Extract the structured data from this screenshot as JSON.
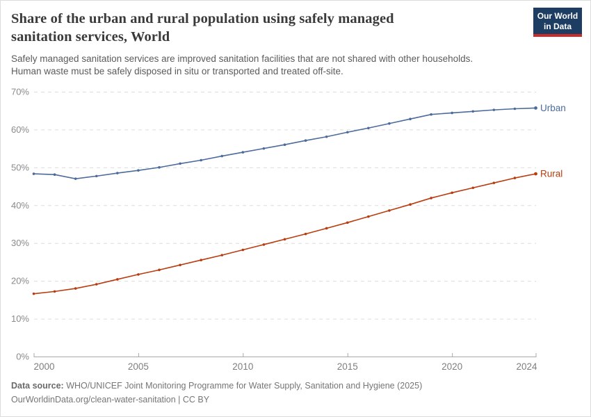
{
  "header": {
    "title_lines": [
      "Share of the urban and rural population using safely managed",
      "sanitation services, World"
    ],
    "subtitle_lines": [
      "Safely managed sanitation services are improved sanitation facilities that are not shared with other households.",
      "Human waste must be safely disposed in situ or transported and treated off-site."
    ]
  },
  "logo": {
    "line1": "Our World",
    "line2": "in Data",
    "bg_color": "#1D3D63",
    "accent_color": "#CB2B29"
  },
  "chart_data": {
    "type": "line",
    "title": "Share of the urban and rural population using safely managed sanitation services, World",
    "x": [
      2000,
      2001,
      2002,
      2003,
      2004,
      2005,
      2006,
      2007,
      2008,
      2009,
      2010,
      2011,
      2012,
      2013,
      2014,
      2015,
      2016,
      2017,
      2018,
      2019,
      2020,
      2021,
      2022,
      2023,
      2024
    ],
    "series": [
      {
        "name": "Urban",
        "color": "#4C6A9C",
        "values": [
          48.3,
          48.1,
          47.0,
          47.7,
          48.5,
          49.2,
          50.0,
          51.0,
          51.9,
          53.0,
          54.0,
          55.0,
          56.0,
          57.1,
          58.1,
          59.3,
          60.4,
          61.6,
          62.8,
          64.0,
          64.4,
          64.8,
          65.2,
          65.5,
          65.7
        ]
      },
      {
        "name": "Rural",
        "color": "#B93B0E",
        "values": [
          16.6,
          17.2,
          18.0,
          19.1,
          20.4,
          21.7,
          22.9,
          24.2,
          25.5,
          26.8,
          28.2,
          29.6,
          31.0,
          32.4,
          33.9,
          35.4,
          37.0,
          38.6,
          40.2,
          41.9,
          43.3,
          44.6,
          45.9,
          47.2,
          48.3
        ]
      }
    ],
    "ylim": [
      0,
      70
    ],
    "xlim": [
      2000,
      2024
    ],
    "y_ticks": [
      0,
      10,
      20,
      30,
      40,
      50,
      60,
      70
    ],
    "y_tick_suffix": "%",
    "x_ticks": [
      2000,
      2005,
      2010,
      2015,
      2020,
      2024
    ],
    "grid": "horizontal-dashed",
    "legend_position": "line-end-labels",
    "xlabel": "",
    "ylabel": ""
  },
  "footer": {
    "data_source_label": "Data source:",
    "data_source": "WHO/UNICEF Joint Monitoring Programme for Water Supply, Sanitation and Hygiene (2025)",
    "link": "OurWorldinData.org/clean-water-sanitation",
    "separator": "|",
    "license": "CC BY"
  }
}
